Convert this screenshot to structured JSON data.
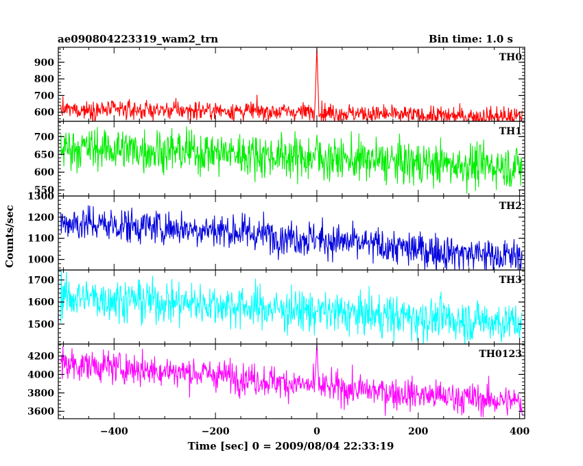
{
  "header": {
    "title": "ae090804223319_wam2_trn",
    "bin_time": "Bin time: 1.0 s"
  },
  "chart_data": {
    "type": "line",
    "xlabel": "Time [sec] 0 = 2009/08/04 22:33:19",
    "ylabel": "Counts/sec",
    "xlim": [
      -510,
      410
    ],
    "xticks": [
      -400,
      -200,
      0,
      200,
      400
    ],
    "x_step": 1.0,
    "panels": [
      {
        "name": "TH0",
        "color": "#ff0000",
        "ylim": [
          545,
          990
        ],
        "yticks": [
          600,
          700,
          800,
          900
        ],
        "trend": [
          [
            -505,
            615
          ],
          [
            -200,
            610
          ],
          [
            0,
            600
          ],
          [
            200,
            580
          ],
          [
            405,
            572
          ]
        ],
        "noise": 28,
        "burst": {
          "t": 0,
          "peak": 990,
          "width": 3
        }
      },
      {
        "name": "TH1",
        "color": "#00ee00",
        "ylim": [
          533,
          743
        ],
        "yticks": [
          550,
          600,
          650,
          700
        ],
        "trend": [
          [
            -505,
            670
          ],
          [
            -200,
            655
          ],
          [
            0,
            640
          ],
          [
            200,
            625
          ],
          [
            405,
            615
          ]
        ],
        "noise": 30,
        "burst": {
          "t": 0,
          "peak": 705,
          "width": 2
        }
      },
      {
        "name": "TH2",
        "color": "#0000dd",
        "ylim": [
          950,
          1300
        ],
        "yticks": [
          1000,
          1100,
          1200,
          1300
        ],
        "trend": [
          [
            -505,
            1175
          ],
          [
            -200,
            1140
          ],
          [
            0,
            1095
          ],
          [
            200,
            1045
          ],
          [
            405,
            1010
          ]
        ],
        "noise": 42,
        "burst": {
          "t": 0,
          "peak": 1110,
          "width": 2
        }
      },
      {
        "name": "TH3",
        "color": "#00ffff",
        "ylim": [
          1410,
          1745
        ],
        "yticks": [
          1500,
          1600,
          1700
        ],
        "trend": [
          [
            -505,
            1625
          ],
          [
            -200,
            1590
          ],
          [
            0,
            1555
          ],
          [
            200,
            1530
          ],
          [
            405,
            1505
          ]
        ],
        "noise": 48,
        "burst": {
          "t": 0,
          "peak": 1560,
          "width": 2
        }
      },
      {
        "name": "TH0123",
        "color": "#ff00ff",
        "ylim": [
          3520,
          4330
        ],
        "yticks": [
          3600,
          3800,
          4000,
          4200
        ],
        "trend": [
          [
            -505,
            4120
          ],
          [
            -200,
            4000
          ],
          [
            0,
            3870
          ],
          [
            200,
            3780
          ],
          [
            405,
            3700
          ]
        ],
        "noise": 85,
        "burst": {
          "t": 0,
          "peak": 4330,
          "width": 3
        }
      }
    ]
  }
}
